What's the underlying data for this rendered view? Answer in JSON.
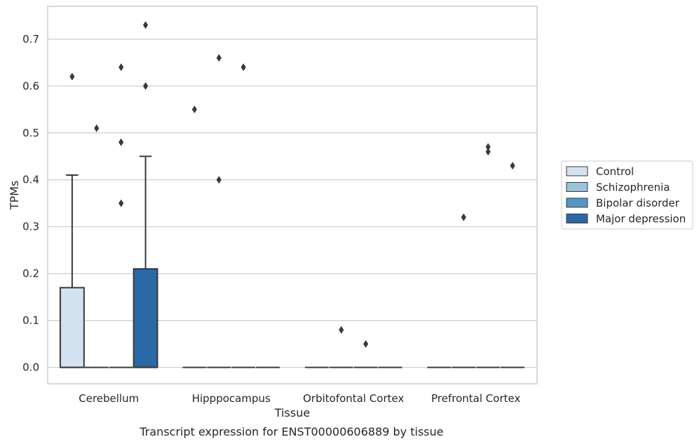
{
  "chart_data": {
    "type": "box",
    "title": "Transcript expression for ENST00000606889 by tissue",
    "xlabel": "Tissue",
    "ylabel": "TPMs",
    "ylim": [
      -0.035,
      0.77
    ],
    "yticks": [
      "0.0",
      "0.1",
      "0.2",
      "0.3",
      "0.4",
      "0.5",
      "0.6",
      "0.7"
    ],
    "ytick_values": [
      0.0,
      0.1,
      0.2,
      0.3,
      0.4,
      0.5,
      0.6,
      0.7
    ],
    "grid": "horizontal",
    "legend_position": "right",
    "categories": [
      "Cerebellum",
      "Hipppocampus",
      "Orbitofontal Cortex",
      "Prefrontal Cortex"
    ],
    "series": [
      {
        "name": "Control",
        "color": "#d2e2f0",
        "boxes": [
          {
            "q1": 0.0,
            "median": 0.0,
            "q3": 0.17,
            "whisker_low": 0.0,
            "whisker_high": 0.41,
            "outliers": [
              0.62
            ]
          },
          {
            "q1": 0.0,
            "median": 0.0,
            "q3": 0.0,
            "whisker_low": 0.0,
            "whisker_high": 0.0,
            "outliers": [
              0.55
            ]
          },
          {
            "q1": 0.0,
            "median": 0.0,
            "q3": 0.0,
            "whisker_low": 0.0,
            "whisker_high": 0.0,
            "outliers": []
          },
          {
            "q1": 0.0,
            "median": 0.0,
            "q3": 0.0,
            "whisker_low": 0.0,
            "whisker_high": 0.0,
            "outliers": []
          }
        ]
      },
      {
        "name": "Schizophrenia",
        "color": "#9ac3dc",
        "boxes": [
          {
            "q1": 0.0,
            "median": 0.0,
            "q3": 0.0,
            "whisker_low": 0.0,
            "whisker_high": 0.0,
            "outliers": [
              0.51
            ]
          },
          {
            "q1": 0.0,
            "median": 0.0,
            "q3": 0.0,
            "whisker_low": 0.0,
            "whisker_high": 0.0,
            "outliers": [
              0.66,
              0.4
            ]
          },
          {
            "q1": 0.0,
            "median": 0.0,
            "q3": 0.0,
            "whisker_low": 0.0,
            "whisker_high": 0.0,
            "outliers": [
              0.08
            ]
          },
          {
            "q1": 0.0,
            "median": 0.0,
            "q3": 0.0,
            "whisker_low": 0.0,
            "whisker_high": 0.0,
            "outliers": [
              0.32
            ]
          }
        ]
      },
      {
        "name": "Bipolar disorder",
        "color": "#5596c5",
        "boxes": [
          {
            "q1": 0.0,
            "median": 0.0,
            "q3": 0.0,
            "whisker_low": 0.0,
            "whisker_high": 0.0,
            "outliers": [
              0.64,
              0.48,
              0.35
            ]
          },
          {
            "q1": 0.0,
            "median": 0.0,
            "q3": 0.0,
            "whisker_low": 0.0,
            "whisker_high": 0.0,
            "outliers": [
              0.64
            ]
          },
          {
            "q1": 0.0,
            "median": 0.0,
            "q3": 0.0,
            "whisker_low": 0.0,
            "whisker_high": 0.0,
            "outliers": [
              0.05
            ]
          },
          {
            "q1": 0.0,
            "median": 0.0,
            "q3": 0.0,
            "whisker_low": 0.0,
            "whisker_high": 0.0,
            "outliers": [
              0.46,
              0.47
            ]
          }
        ]
      },
      {
        "name": "Major depression",
        "color": "#2a68a6",
        "boxes": [
          {
            "q1": 0.0,
            "median": 0.0,
            "q3": 0.21,
            "whisker_low": 0.0,
            "whisker_high": 0.45,
            "outliers": [
              0.73,
              0.6
            ]
          },
          {
            "q1": 0.0,
            "median": 0.0,
            "q3": 0.0,
            "whisker_low": 0.0,
            "whisker_high": 0.0,
            "outliers": []
          },
          {
            "q1": 0.0,
            "median": 0.0,
            "q3": 0.0,
            "whisker_low": 0.0,
            "whisker_high": 0.0,
            "outliers": []
          },
          {
            "q1": 0.0,
            "median": 0.0,
            "q3": 0.0,
            "whisker_low": 0.0,
            "whisker_high": 0.0,
            "outliers": [
              0.43
            ]
          }
        ]
      }
    ]
  }
}
